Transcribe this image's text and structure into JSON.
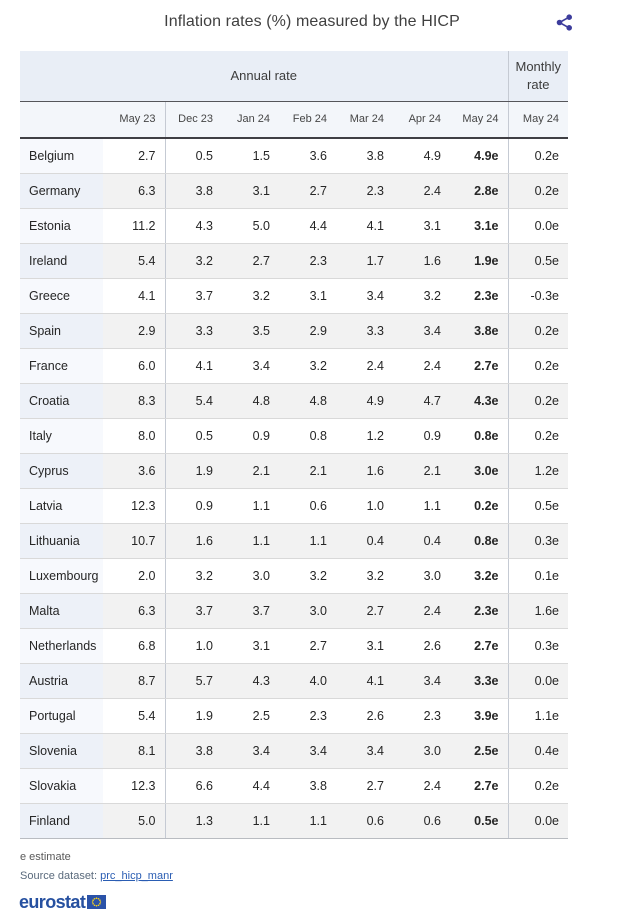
{
  "title": "Inflation rates (%) measured by the HICP",
  "chart_data": {
    "type": "table",
    "title": "Inflation rates (%) measured by the HICP",
    "unit": "%",
    "column_group_labels": {
      "annual": "Annual rate",
      "monthly": "Monthly rate"
    },
    "annual_columns": [
      "May 23",
      "Dec 23",
      "Jan 24",
      "Feb 24",
      "Mar 24",
      "Apr 24",
      "May 24"
    ],
    "monthly_column": "May 24",
    "rows": [
      {
        "country": "Belgium",
        "annual": [
          "2.7",
          "0.5",
          "1.5",
          "3.6",
          "3.8",
          "4.9",
          "4.9e"
        ],
        "monthly": "0.2e"
      },
      {
        "country": "Germany",
        "annual": [
          "6.3",
          "3.8",
          "3.1",
          "2.7",
          "2.3",
          "2.4",
          "2.8e"
        ],
        "monthly": "0.2e"
      },
      {
        "country": "Estonia",
        "annual": [
          "11.2",
          "4.3",
          "5.0",
          "4.4",
          "4.1",
          "3.1",
          "3.1e"
        ],
        "monthly": "0.0e"
      },
      {
        "country": "Ireland",
        "annual": [
          "5.4",
          "3.2",
          "2.7",
          "2.3",
          "1.7",
          "1.6",
          "1.9e"
        ],
        "monthly": "0.5e"
      },
      {
        "country": "Greece",
        "annual": [
          "4.1",
          "3.7",
          "3.2",
          "3.1",
          "3.4",
          "3.2",
          "2.3e"
        ],
        "monthly": "-0.3e"
      },
      {
        "country": "Spain",
        "annual": [
          "2.9",
          "3.3",
          "3.5",
          "2.9",
          "3.3",
          "3.4",
          "3.8e"
        ],
        "monthly": "0.2e"
      },
      {
        "country": "France",
        "annual": [
          "6.0",
          "4.1",
          "3.4",
          "3.2",
          "2.4",
          "2.4",
          "2.7e"
        ],
        "monthly": "0.2e"
      },
      {
        "country": "Croatia",
        "annual": [
          "8.3",
          "5.4",
          "4.8",
          "4.8",
          "4.9",
          "4.7",
          "4.3e"
        ],
        "monthly": "0.2e"
      },
      {
        "country": "Italy",
        "annual": [
          "8.0",
          "0.5",
          "0.9",
          "0.8",
          "1.2",
          "0.9",
          "0.8e"
        ],
        "monthly": "0.2e"
      },
      {
        "country": "Cyprus",
        "annual": [
          "3.6",
          "1.9",
          "2.1",
          "2.1",
          "1.6",
          "2.1",
          "3.0e"
        ],
        "monthly": "1.2e"
      },
      {
        "country": "Latvia",
        "annual": [
          "12.3",
          "0.9",
          "1.1",
          "0.6",
          "1.0",
          "1.1",
          "0.2e"
        ],
        "monthly": "0.5e"
      },
      {
        "country": "Lithuania",
        "annual": [
          "10.7",
          "1.6",
          "1.1",
          "1.1",
          "0.4",
          "0.4",
          "0.8e"
        ],
        "monthly": "0.3e"
      },
      {
        "country": "Luxembourg",
        "annual": [
          "2.0",
          "3.2",
          "3.0",
          "3.2",
          "3.2",
          "3.0",
          "3.2e"
        ],
        "monthly": "0.1e"
      },
      {
        "country": "Malta",
        "annual": [
          "6.3",
          "3.7",
          "3.7",
          "3.0",
          "2.7",
          "2.4",
          "2.3e"
        ],
        "monthly": "1.6e"
      },
      {
        "country": "Netherlands",
        "annual": [
          "6.8",
          "1.0",
          "3.1",
          "2.7",
          "3.1",
          "2.6",
          "2.7e"
        ],
        "monthly": "0.3e"
      },
      {
        "country": "Austria",
        "annual": [
          "8.7",
          "5.7",
          "4.3",
          "4.0",
          "4.1",
          "3.4",
          "3.3e"
        ],
        "monthly": "0.0e"
      },
      {
        "country": "Portugal",
        "annual": [
          "5.4",
          "1.9",
          "2.5",
          "2.3",
          "2.6",
          "2.3",
          "3.9e"
        ],
        "monthly": "1.1e"
      },
      {
        "country": "Slovenia",
        "annual": [
          "8.1",
          "3.8",
          "3.4",
          "3.4",
          "3.4",
          "3.0",
          "2.5e"
        ],
        "monthly": "0.4e"
      },
      {
        "country": "Slovakia",
        "annual": [
          "12.3",
          "6.6",
          "4.4",
          "3.8",
          "2.7",
          "2.4",
          "2.7e"
        ],
        "monthly": "0.2e"
      },
      {
        "country": "Finland",
        "annual": [
          "5.0",
          "1.3",
          "1.1",
          "1.1",
          "0.6",
          "0.6",
          "0.5e"
        ],
        "monthly": "0.0e"
      }
    ]
  },
  "footer": {
    "estimate_note": "e estimate",
    "source_label": "Source dataset: ",
    "source_link": "prc_hicp_manr",
    "logo_text": "eurostat"
  },
  "colors": {
    "group_header_bg": "#e9eef6",
    "month_header_bg": "#f3f6fa",
    "even_row_bg": "#f2f2f2",
    "country_col_odd_bg": "#f7f9fd",
    "country_col_even_bg": "#edf1f8",
    "dark_header_border": "#3f3f44",
    "share_icon": "#3c3c9c",
    "eurostat_blue": "#2650a0",
    "link_blue": "#2a5db3"
  }
}
